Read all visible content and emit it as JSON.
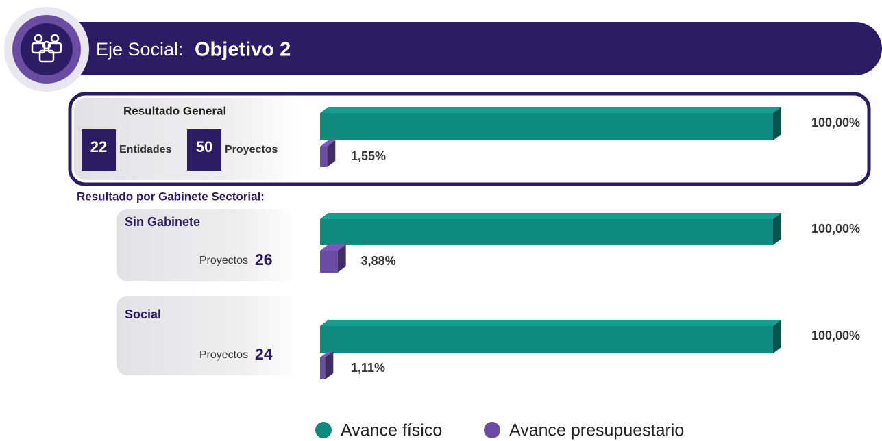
{
  "header": {
    "prefix": "Eje Social:",
    "title": "Objetivo 2"
  },
  "summary": {
    "title": "Resultado General",
    "entities": 22,
    "entities_label": "Entidades",
    "projects": 50,
    "projects_label": "Proyectos"
  },
  "section_label": "Resultado por Gabinete Sectorial:",
  "groups": [
    {
      "count_label": "Proyectos",
      "count": 26
    },
    {
      "count_label": "Proyectos",
      "count": 24
    }
  ],
  "chart_data": {
    "type": "bar",
    "categories": [
      "Resultado General",
      "Sin Gabinete",
      "Social"
    ],
    "xlim": [
      0,
      100
    ],
    "series": [
      {
        "name": "Avance físico",
        "color": "#0f8a7e",
        "values": [
          100,
          100,
          100
        ],
        "value_labels": [
          "100,00%",
          "100,00%",
          "100,00%"
        ]
      },
      {
        "name": "Avance presupuestario",
        "color": "#6b4ca3",
        "values": [
          1.55,
          3.88,
          1.11
        ],
        "value_labels": [
          "1,55%",
          "3,88%",
          "1,11%"
        ]
      }
    ]
  }
}
